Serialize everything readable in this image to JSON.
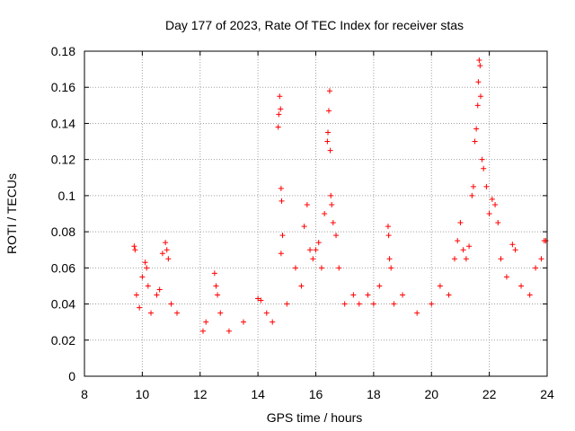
{
  "chart_data": {
    "type": "scatter",
    "title": "Day 177 of 2023, Rate Of TEC Index for receiver stas",
    "xlabel": "GPS time / hours",
    "ylabel": "ROTI / TECUs",
    "xlim": [
      8,
      24
    ],
    "ylim": [
      0,
      0.18
    ],
    "x_ticks": [
      8,
      10,
      12,
      14,
      16,
      18,
      20,
      22,
      24
    ],
    "x_tick_labels": [
      "8",
      "10",
      "12",
      "14",
      "16",
      "18",
      "20",
      "22",
      "24"
    ],
    "y_ticks": [
      0,
      0.02,
      0.04,
      0.06,
      0.08,
      0.1,
      0.12,
      0.14,
      0.16,
      0.18
    ],
    "y_tick_labels": [
      "0",
      "0.02",
      "0.04",
      "0.06",
      "0.08",
      "0.1",
      "0.12",
      "0.14",
      "0.16",
      "0.18"
    ],
    "grid": true,
    "marker": "+",
    "marker_color": "#ff0000",
    "series": [
      {
        "name": "stas",
        "points": [
          [
            9.72,
            0.072
          ],
          [
            9.75,
            0.07
          ],
          [
            9.8,
            0.045
          ],
          [
            9.9,
            0.038
          ],
          [
            10.0,
            0.055
          ],
          [
            10.1,
            0.063
          ],
          [
            10.15,
            0.06
          ],
          [
            10.2,
            0.05
          ],
          [
            10.3,
            0.035
          ],
          [
            10.5,
            0.045
          ],
          [
            10.6,
            0.048
          ],
          [
            10.7,
            0.068
          ],
          [
            10.8,
            0.074
          ],
          [
            10.85,
            0.07
          ],
          [
            10.9,
            0.065
          ],
          [
            11.0,
            0.04
          ],
          [
            11.2,
            0.035
          ],
          [
            12.1,
            0.025
          ],
          [
            12.2,
            0.03
          ],
          [
            12.5,
            0.057
          ],
          [
            12.55,
            0.05
          ],
          [
            12.6,
            0.045
          ],
          [
            12.7,
            0.035
          ],
          [
            13.0,
            0.025
          ],
          [
            13.5,
            0.03
          ],
          [
            14.0,
            0.043
          ],
          [
            14.1,
            0.042
          ],
          [
            14.3,
            0.035
          ],
          [
            14.5,
            0.03
          ],
          [
            14.7,
            0.138
          ],
          [
            14.72,
            0.145
          ],
          [
            14.75,
            0.155
          ],
          [
            14.78,
            0.148
          ],
          [
            14.8,
            0.104
          ],
          [
            14.82,
            0.097
          ],
          [
            14.85,
            0.078
          ],
          [
            14.8,
            0.068
          ],
          [
            15.0,
            0.04
          ],
          [
            15.3,
            0.06
          ],
          [
            15.5,
            0.05
          ],
          [
            15.6,
            0.083
          ],
          [
            15.7,
            0.095
          ],
          [
            15.8,
            0.07
          ],
          [
            15.9,
            0.065
          ],
          [
            16.0,
            0.07
          ],
          [
            16.1,
            0.074
          ],
          [
            16.2,
            0.06
          ],
          [
            16.3,
            0.09
          ],
          [
            16.4,
            0.13
          ],
          [
            16.42,
            0.135
          ],
          [
            16.45,
            0.147
          ],
          [
            16.48,
            0.158
          ],
          [
            16.5,
            0.125
          ],
          [
            16.52,
            0.1
          ],
          [
            16.55,
            0.095
          ],
          [
            16.6,
            0.085
          ],
          [
            16.7,
            0.078
          ],
          [
            16.8,
            0.06
          ],
          [
            17.0,
            0.04
          ],
          [
            17.3,
            0.045
          ],
          [
            17.5,
            0.04
          ],
          [
            17.8,
            0.045
          ],
          [
            18.0,
            0.04
          ],
          [
            18.2,
            0.05
          ],
          [
            18.5,
            0.083
          ],
          [
            18.52,
            0.078
          ],
          [
            18.55,
            0.065
          ],
          [
            18.6,
            0.06
          ],
          [
            18.7,
            0.04
          ],
          [
            19.0,
            0.045
          ],
          [
            19.5,
            0.035
          ],
          [
            20.0,
            0.04
          ],
          [
            20.3,
            0.05
          ],
          [
            20.6,
            0.045
          ],
          [
            20.8,
            0.065
          ],
          [
            20.9,
            0.075
          ],
          [
            21.0,
            0.085
          ],
          [
            21.1,
            0.07
          ],
          [
            21.2,
            0.065
          ],
          [
            21.3,
            0.072
          ],
          [
            21.4,
            0.1
          ],
          [
            21.45,
            0.105
          ],
          [
            21.5,
            0.13
          ],
          [
            21.55,
            0.137
          ],
          [
            21.6,
            0.15
          ],
          [
            21.62,
            0.163
          ],
          [
            21.65,
            0.175
          ],
          [
            21.68,
            0.172
          ],
          [
            21.7,
            0.155
          ],
          [
            21.75,
            0.12
          ],
          [
            21.8,
            0.115
          ],
          [
            21.9,
            0.105
          ],
          [
            22.0,
            0.09
          ],
          [
            22.1,
            0.098
          ],
          [
            22.2,
            0.095
          ],
          [
            22.3,
            0.085
          ],
          [
            22.4,
            0.065
          ],
          [
            22.6,
            0.055
          ],
          [
            22.8,
            0.073
          ],
          [
            22.9,
            0.07
          ],
          [
            23.1,
            0.05
          ],
          [
            23.4,
            0.045
          ],
          [
            23.6,
            0.06
          ],
          [
            23.8,
            0.065
          ],
          [
            23.9,
            0.075
          ],
          [
            23.95,
            0.075
          ]
        ]
      }
    ]
  }
}
